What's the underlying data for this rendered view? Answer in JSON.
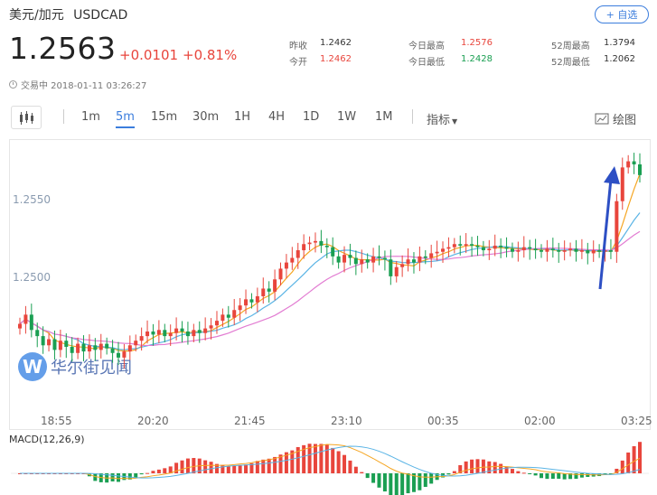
{
  "header": {
    "pair_name": "美元/加元",
    "pair_code": "USDCAD",
    "watchlist_label": "+ 自选",
    "price": "1.2563",
    "change": "+0.0101",
    "change_pct": "+0.81%",
    "status": "交易中 2018-01-11 03:26:27"
  },
  "stats": [
    {
      "label": "昨收",
      "value": "1.2462",
      "tone": "neutral"
    },
    {
      "label": "今开",
      "value": "1.2462",
      "tone": "up"
    },
    {
      "label": "今日最高",
      "value": "1.2576",
      "tone": "up"
    },
    {
      "label": "今日最低",
      "value": "1.2428",
      "tone": "down"
    },
    {
      "label": "52周最高",
      "value": "1.3794",
      "tone": "neutral"
    },
    {
      "label": "52周最低",
      "value": "1.2062",
      "tone": "neutral"
    }
  ],
  "toolbar": {
    "periods": [
      "1m",
      "5m",
      "15m",
      "30m",
      "1H",
      "4H",
      "1D",
      "1W",
      "1M"
    ],
    "active_period": "5m",
    "indicator_label": "指标",
    "drawing_label": "绘图"
  },
  "chart_data": {
    "type": "candlestick",
    "y_ticks": [
      "1.2550",
      "1.2500"
    ],
    "x_ticks": [
      "18:55",
      "20:20",
      "21:45",
      "23:10",
      "00:35",
      "02:00",
      "03:25"
    ],
    "ylim": [
      1.2418,
      1.258
    ],
    "closes": [
      1.2466,
      1.2472,
      1.2462,
      1.2458,
      1.2452,
      1.2456,
      1.2449,
      1.2455,
      1.2451,
      1.2447,
      1.2453,
      1.2448,
      1.2452,
      1.2449,
      1.2453,
      1.245,
      1.2447,
      1.2444,
      1.2448,
      1.2452,
      1.2455,
      1.2458,
      1.2461,
      1.2459,
      1.2462,
      1.2458,
      1.246,
      1.2463,
      1.2461,
      1.2458,
      1.2462,
      1.246,
      1.2463,
      1.2465,
      1.2468,
      1.2472,
      1.247,
      1.2475,
      1.2478,
      1.2482,
      1.248,
      1.2484,
      1.2489,
      1.2487,
      1.2495,
      1.2502,
      1.2506,
      1.2509,
      1.2514,
      1.2518,
      1.2519,
      1.252,
      1.2517,
      1.2516,
      1.251,
      1.2506,
      1.2511,
      1.2509,
      1.2505,
      1.2508,
      1.2506,
      1.251,
      1.2509,
      1.2508,
      1.2497,
      1.2503,
      1.2505,
      1.2508,
      1.2506,
      1.251,
      1.2509,
      1.2512,
      1.2513,
      1.2515,
      1.2516,
      1.2518,
      1.2517,
      1.2518,
      1.2517,
      1.2516,
      1.2514,
      1.2515,
      1.2517,
      1.2516,
      1.2515,
      1.2513,
      1.2514,
      1.2516,
      1.2515,
      1.2514,
      1.2513,
      1.2515,
      1.2514,
      1.2513,
      1.2514,
      1.2515,
      1.2513,
      1.2514,
      1.2512,
      1.2514,
      1.2513,
      1.2514,
      1.2513,
      1.2546,
      1.2568,
      1.2572,
      1.257,
      1.2563
    ],
    "macd_label": "MACD(12,26,9)"
  },
  "watermark": {
    "logo": "W",
    "text": "华尔街见闻"
  }
}
